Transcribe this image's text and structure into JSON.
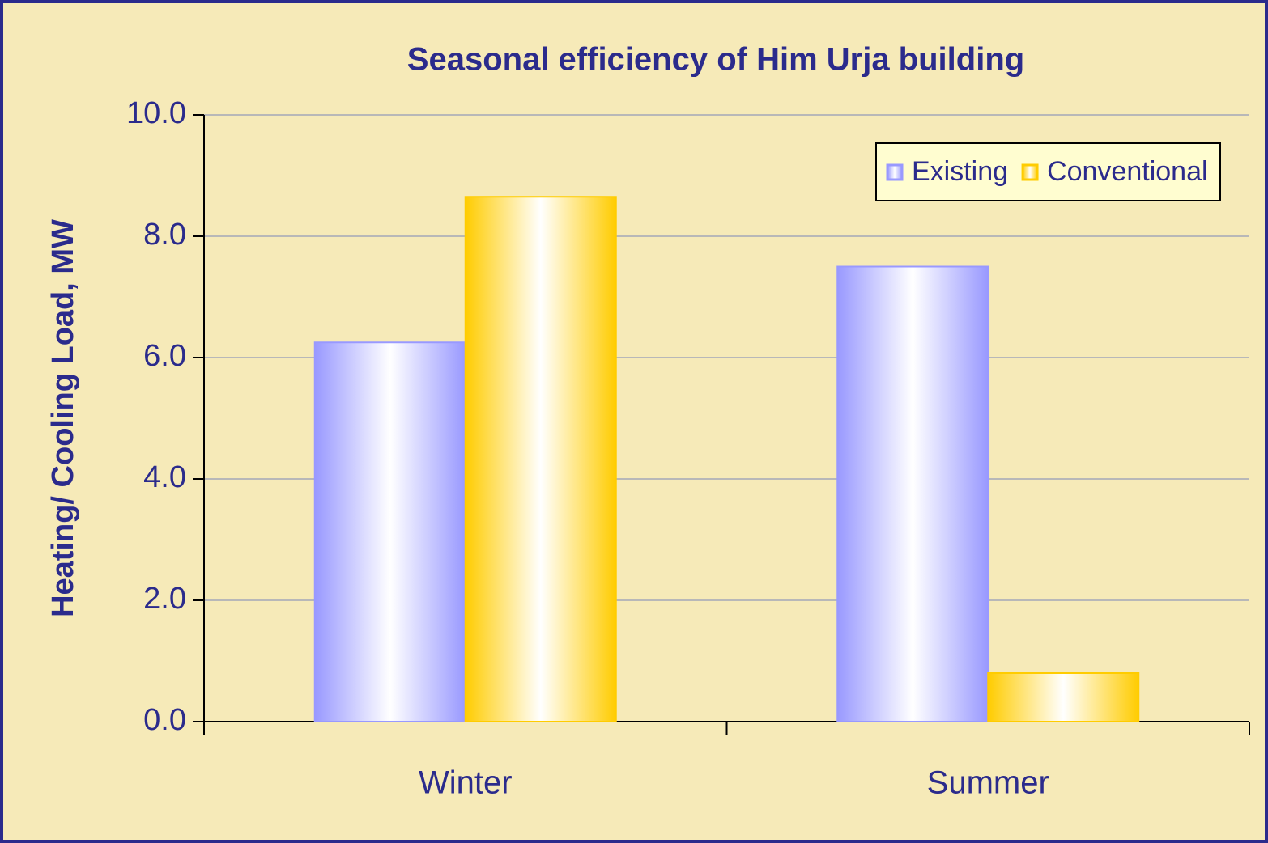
{
  "chart_data": {
    "type": "bar",
    "title": "Seasonal efficiency of Him Urja building",
    "y_label": "Heating/ Cooling Load, MW",
    "categories": [
      "Winter",
      "Summer"
    ],
    "series": [
      {
        "name": "Existing",
        "color": "#9999ff",
        "values": [
          6.25,
          7.5
        ]
      },
      {
        "name": "Conventional",
        "color": "#ffcc00",
        "values": [
          8.65,
          0.8
        ]
      }
    ],
    "ylim": [
      0,
      10
    ],
    "yticks": [
      {
        "value": 0,
        "label": "0.0"
      },
      {
        "value": 2,
        "label": "2.0"
      },
      {
        "value": 4,
        "label": "4.0"
      },
      {
        "value": 6,
        "label": "6.0"
      },
      {
        "value": 8,
        "label": "8.0"
      },
      {
        "value": 10,
        "label": "10.0"
      }
    ],
    "grid": true,
    "legend": "top-right"
  }
}
